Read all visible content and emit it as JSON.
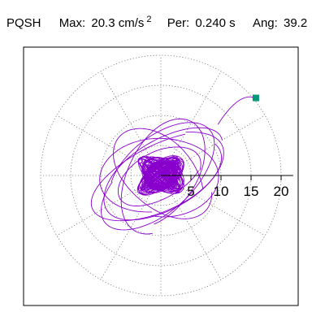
{
  "header": {
    "station": "PQSH",
    "max_label": "Max:",
    "max_value": "20.3 cm/s",
    "max_exp": "2",
    "per_label": "Per:",
    "per_value": "0.240 s",
    "ang_label": "Ang:",
    "ang_value": "39.2"
  },
  "chart_data": {
    "type": "polar-hodogram",
    "radial_ticks": [
      5,
      10,
      15,
      20
    ],
    "radial_tick_labels": [
      "5",
      "10",
      "15",
      "20"
    ],
    "r_max": 22,
    "angular_gridline_step_deg": 30,
    "grid": "dotted",
    "max_amplitude": 20.3,
    "max_direction_deg": 39.2,
    "trace_color": "#8800cc",
    "marker_color": "#009977",
    "marker": {
      "x": 15.8,
      "y": 12.9
    },
    "trace_components": [
      {
        "ax": 10.2,
        "ay": 5.9,
        "bx": -3.4,
        "by": 4.1,
        "wind_deg": 360,
        "start_deg": 0
      },
      {
        "ax": 11.5,
        "ay": 4.5,
        "bx": -2.2,
        "by": 5.0,
        "wind_deg": 360,
        "start_deg": 60
      },
      {
        "ax": 8.0,
        "ay": 7.5,
        "bx": -5.5,
        "by": 3.0,
        "wind_deg": 360,
        "start_deg": 120
      },
      {
        "ax": 6.5,
        "ay": -5.5,
        "bx": 4.0,
        "by": 4.5,
        "wind_deg": 360,
        "start_deg": 30
      },
      {
        "ax": 3.5,
        "ay": 8.5,
        "bx": -6.0,
        "by": 1.8,
        "wind_deg": 360,
        "start_deg": 200
      },
      {
        "ax": 9.0,
        "ay": 2.0,
        "bx": -1.5,
        "by": 6.5,
        "wind_deg": 360,
        "start_deg": 250
      },
      {
        "ax": 5.0,
        "ay": 5.0,
        "bx": -4.0,
        "by": 2.0,
        "wind_deg": 360,
        "start_deg": 300
      },
      {
        "ax": 2.2,
        "ay": 1.0,
        "bx": -0.8,
        "by": 2.0,
        "wind_deg": 3600,
        "start_deg": 0
      }
    ]
  }
}
